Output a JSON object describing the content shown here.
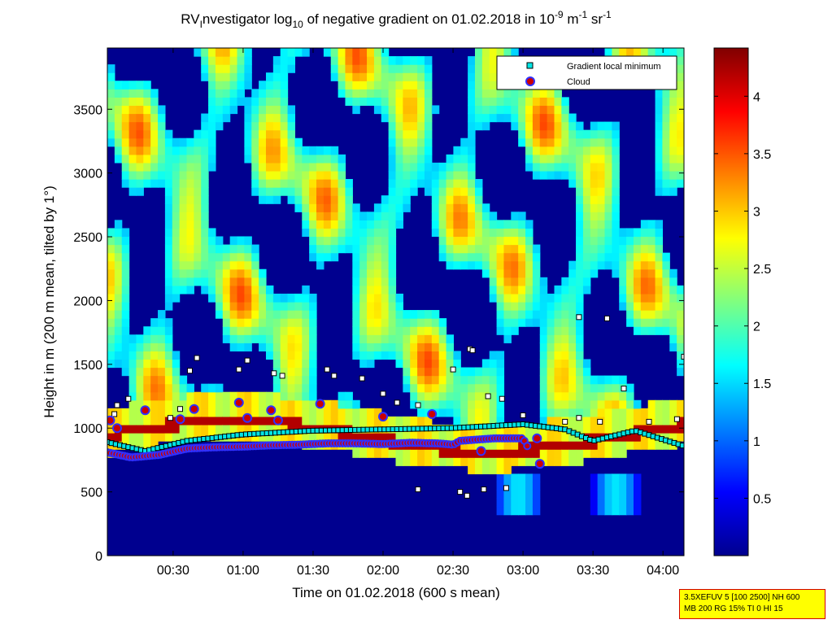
{
  "chart_data": {
    "type": "heatmap",
    "title_parts": [
      "RV",
      "I",
      "nvestigator log",
      "10",
      " of negative gradient on 01.02.2018 in 10",
      "-9",
      " m",
      "-1",
      " sr",
      "-1"
    ],
    "xlabel": "Time on 01.02.2018 (600 s mean)",
    "ylabel": "Height in m (200 m mean, tilted by 1°)",
    "x_ticks": [
      "00:30",
      "01:00",
      "01:30",
      "02:00",
      "02:30",
      "03:00",
      "03:30",
      "04:00"
    ],
    "x_tick_hours": [
      0.5,
      1.0,
      1.5,
      2.0,
      2.5,
      3.0,
      3.5,
      4.0
    ],
    "xlim_hours": [
      0.03,
      4.15
    ],
    "y_ticks": [
      0,
      500,
      1000,
      1500,
      2000,
      2500,
      3000,
      3500
    ],
    "ylim": [
      0,
      3980
    ],
    "colorbar": {
      "ticks": [
        0.5,
        1,
        1.5,
        2,
        2.5,
        3,
        3.5,
        4
      ],
      "tick_labels": [
        "0.5",
        "1",
        "1.5",
        "2",
        "2.5",
        "3",
        "3.5",
        "4"
      ],
      "range": [
        0,
        4.42
      ],
      "colormap": "jet"
    },
    "legend": {
      "placement": "top-right",
      "entries": [
        {
          "label": "Gradient local minimum",
          "marker": "square",
          "color": "#00e5e5"
        },
        {
          "label": "Cloud",
          "marker": "circle",
          "color": "#cc0000",
          "edge": "#3030ff"
        }
      ]
    },
    "cloud_base": [
      [
        0.03,
        810
      ],
      [
        0.2,
        770
      ],
      [
        0.4,
        790
      ],
      [
        0.6,
        840
      ],
      [
        0.8,
        850
      ],
      [
        1.0,
        855
      ],
      [
        1.2,
        865
      ],
      [
        1.4,
        870
      ],
      [
        1.6,
        880
      ],
      [
        1.8,
        880
      ],
      [
        2.0,
        875
      ],
      [
        2.2,
        885
      ],
      [
        2.4,
        880
      ],
      [
        2.5,
        870
      ],
      [
        2.55,
        900
      ],
      [
        2.8,
        920
      ],
      [
        3.0,
        920
      ],
      [
        3.05,
        820
      ]
    ],
    "cloud_points": [
      [
        0.05,
        1060
      ],
      [
        0.1,
        1000
      ],
      [
        0.3,
        1140
      ],
      [
        0.55,
        1070
      ],
      [
        0.65,
        1150
      ],
      [
        0.97,
        1200
      ],
      [
        1.03,
        1080
      ],
      [
        1.2,
        1140
      ],
      [
        1.25,
        1060
      ],
      [
        1.55,
        1190
      ],
      [
        2.0,
        1090
      ],
      [
        2.35,
        1110
      ],
      [
        2.7,
        820
      ],
      [
        3.1,
        920
      ],
      [
        3.12,
        720
      ]
    ],
    "gradient_min_band": [
      [
        0.03,
        890
      ],
      [
        0.3,
        820
      ],
      [
        0.6,
        900
      ],
      [
        1.0,
        950
      ],
      [
        1.5,
        980
      ],
      [
        2.0,
        990
      ],
      [
        2.5,
        1000
      ],
      [
        3.0,
        1030
      ],
      [
        3.3,
        990
      ],
      [
        3.5,
        900
      ],
      [
        3.8,
        980
      ],
      [
        4.15,
        860
      ]
    ],
    "gradient_min_points": [
      [
        0.08,
        1110
      ],
      [
        0.1,
        1180
      ],
      [
        0.18,
        1230
      ],
      [
        0.48,
        1080
      ],
      [
        0.55,
        1150
      ],
      [
        0.62,
        1450
      ],
      [
        0.67,
        1550
      ],
      [
        0.97,
        1460
      ],
      [
        1.03,
        1530
      ],
      [
        1.22,
        1430
      ],
      [
        1.28,
        1410
      ],
      [
        1.6,
        1460
      ],
      [
        1.65,
        1410
      ],
      [
        1.85,
        1390
      ],
      [
        2.0,
        1270
      ],
      [
        2.1,
        1200
      ],
      [
        2.25,
        1180
      ],
      [
        2.5,
        1460
      ],
      [
        2.62,
        1620
      ],
      [
        2.64,
        1610
      ],
      [
        2.75,
        1250
      ],
      [
        2.85,
        1230
      ],
      [
        3.0,
        1100
      ],
      [
        3.3,
        1050
      ],
      [
        3.4,
        1080
      ],
      [
        3.55,
        1050
      ],
      [
        3.72,
        1310
      ],
      [
        3.9,
        1050
      ],
      [
        4.1,
        1070
      ],
      [
        4.15,
        1560
      ],
      [
        2.55,
        500
      ],
      [
        2.6,
        470
      ],
      [
        2.72,
        520
      ],
      [
        2.88,
        530
      ],
      [
        2.25,
        520
      ],
      [
        3.4,
        1870
      ],
      [
        3.6,
        1860
      ]
    ]
  },
  "info_box": {
    "line1": "3.5XEFUV 5 [100 2500] NH 600",
    "line2": "MB 200 RG 15% TI 0 HI 15"
  }
}
